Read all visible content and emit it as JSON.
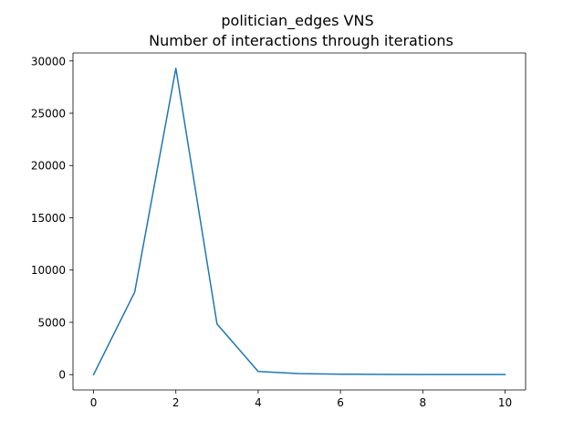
{
  "chart_data": {
    "type": "line",
    "title": "politician_edges VNS",
    "subtitle": "Number of interactions through iterations",
    "xlabel": "",
    "ylabel": "",
    "x": [
      0,
      1,
      2,
      3,
      4,
      5,
      6,
      7,
      8,
      9,
      10
    ],
    "series": [
      {
        "values": [
          0,
          7900,
          29300,
          4850,
          300,
          100,
          40,
          20,
          10,
          10,
          5
        ]
      }
    ],
    "xlim": [
      -0.5,
      10.5
    ],
    "ylim": [
      -1465,
      30765
    ],
    "xticks": [
      0,
      2,
      4,
      6,
      8,
      10
    ],
    "xtick_labels": [
      "0",
      "2",
      "4",
      "6",
      "8",
      "10"
    ],
    "yticks": [
      0,
      5000,
      10000,
      15000,
      20000,
      25000,
      30000
    ],
    "ytick_labels": [
      "0",
      "5000",
      "10000",
      "15000",
      "20000",
      "25000",
      "30000"
    ],
    "grid": false,
    "colors": {
      "series": "#1f77b4",
      "axes": "#000000",
      "background": "#ffffff"
    }
  }
}
